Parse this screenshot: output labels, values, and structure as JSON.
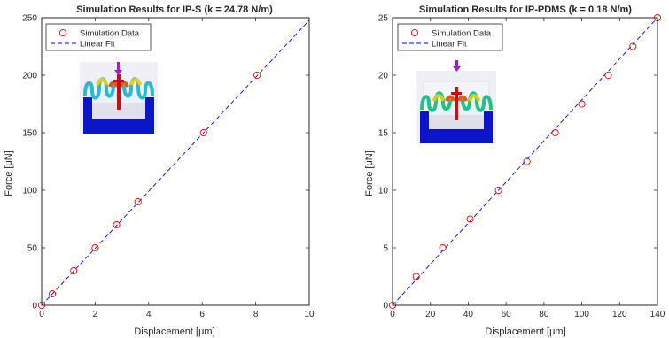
{
  "chart_data": [
    {
      "type": "scatter",
      "title": "Simulation Results for IP-S (k = 24.78 N/m)",
      "xlabel": "Displacement [μm]",
      "ylabel": "Force [μN]",
      "xlim": [
        0,
        10
      ],
      "ylim": [
        0,
        250
      ],
      "xticks": [
        "0",
        "2",
        "4",
        "6",
        "8",
        "10"
      ],
      "yticks": [
        "0",
        "50",
        "100",
        "150",
        "200",
        "250"
      ],
      "grid": false,
      "legend_position": "top-left",
      "series": [
        {
          "name": "Simulation Data",
          "marker": "circle",
          "color": "#ff0000",
          "x": [
            0,
            0.4,
            1.2,
            2.0,
            2.8,
            3.6,
            6.05,
            8.05
          ],
          "y": [
            0,
            10,
            30,
            50,
            70,
            90,
            150,
            200
          ]
        },
        {
          "name": "Linear Fit",
          "style": "dashed-line",
          "color": "#0000ff",
          "x": [
            0,
            10
          ],
          "y": [
            0,
            247.8
          ]
        }
      ],
      "inset": "color-map-image-of-serpentine-spring"
    },
    {
      "type": "scatter",
      "title": "Simulation Results for IP-PDMS (k = 0.18 N/m)",
      "xlabel": "Displacement [μm]",
      "ylabel": "Force [μN]",
      "xlim": [
        0,
        140
      ],
      "ylim": [
        0,
        25
      ],
      "xticks": [
        "0",
        "20",
        "40",
        "60",
        "80",
        "100",
        "120",
        "140"
      ],
      "yticks": [
        "0",
        "5",
        "10",
        "15",
        "20",
        "25"
      ],
      "grid": false,
      "legend_position": "top-left",
      "series": [
        {
          "name": "Simulation Data",
          "marker": "circle",
          "color": "#ff0000",
          "x": [
            0,
            12.5,
            26.5,
            41,
            56,
            71,
            86,
            100,
            114,
            127,
            140
          ],
          "y": [
            0,
            2.5,
            5,
            7.5,
            10,
            12.5,
            15,
            17.5,
            20,
            22.5,
            25
          ]
        },
        {
          "name": "Linear Fit",
          "style": "dashed-line",
          "color": "#0000ff",
          "x": [
            0,
            140
          ],
          "y": [
            0,
            25.2
          ]
        }
      ],
      "inset": "color-map-image-of-serpentine-spring"
    }
  ]
}
